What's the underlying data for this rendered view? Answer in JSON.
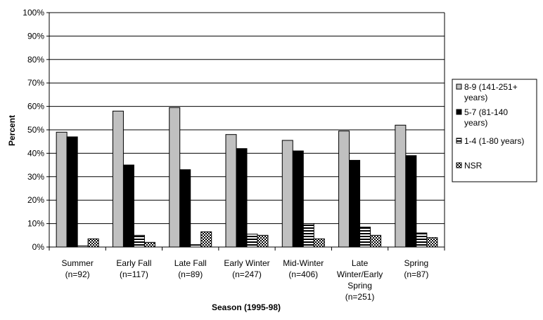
{
  "chart_data": {
    "type": "bar",
    "title": "",
    "xlabel": "Season (1995-98)",
    "ylabel": "Percent",
    "ylim": [
      0,
      100
    ],
    "ytick_step": 10,
    "yticks": [
      "0%",
      "10%",
      "20%",
      "30%",
      "40%",
      "50%",
      "60%",
      "70%",
      "80%",
      "90%",
      "100%"
    ],
    "grid": true,
    "legend_position": "right",
    "categories": [
      [
        "Summer",
        "(n=92)"
      ],
      [
        "Early Fall",
        "(n=117)"
      ],
      [
        "Late Fall",
        "(n=89)"
      ],
      [
        "Early Winter",
        "(n=247)"
      ],
      [
        "Mid-Winter",
        "(n=406)"
      ],
      [
        "Late",
        "Winter/Early",
        "Spring",
        "(n=251)"
      ],
      [
        "Spring",
        "(n=87)"
      ]
    ],
    "series": [
      {
        "name": "8-9 (141-251+ years)",
        "legend_lines": [
          "8-9 (141-251+",
          "years)"
        ],
        "color": "#c0c0c0",
        "pattern": "solid",
        "values": [
          49,
          58,
          59.5,
          48,
          45.5,
          49.5,
          52
        ]
      },
      {
        "name": "5-7 (81-140 years)",
        "legend_lines": [
          "5-7 (81-140",
          "years)"
        ],
        "color": "#000000",
        "pattern": "solid",
        "values": [
          47,
          35,
          33,
          42,
          41,
          37,
          39
        ]
      },
      {
        "name": "1-4 (1-80 years)",
        "legend_lines": [
          "1-4 (1-80 years)"
        ],
        "color": "#000000",
        "pattern": "hstripes",
        "values": [
          0.5,
          5,
          1,
          5.5,
          10,
          8.5,
          6
        ]
      },
      {
        "name": "NSR",
        "legend_lines": [
          "NSR"
        ],
        "color": "#000000",
        "pattern": "checker",
        "values": [
          3.5,
          2,
          6.5,
          5,
          3.5,
          5,
          4
        ]
      }
    ]
  }
}
